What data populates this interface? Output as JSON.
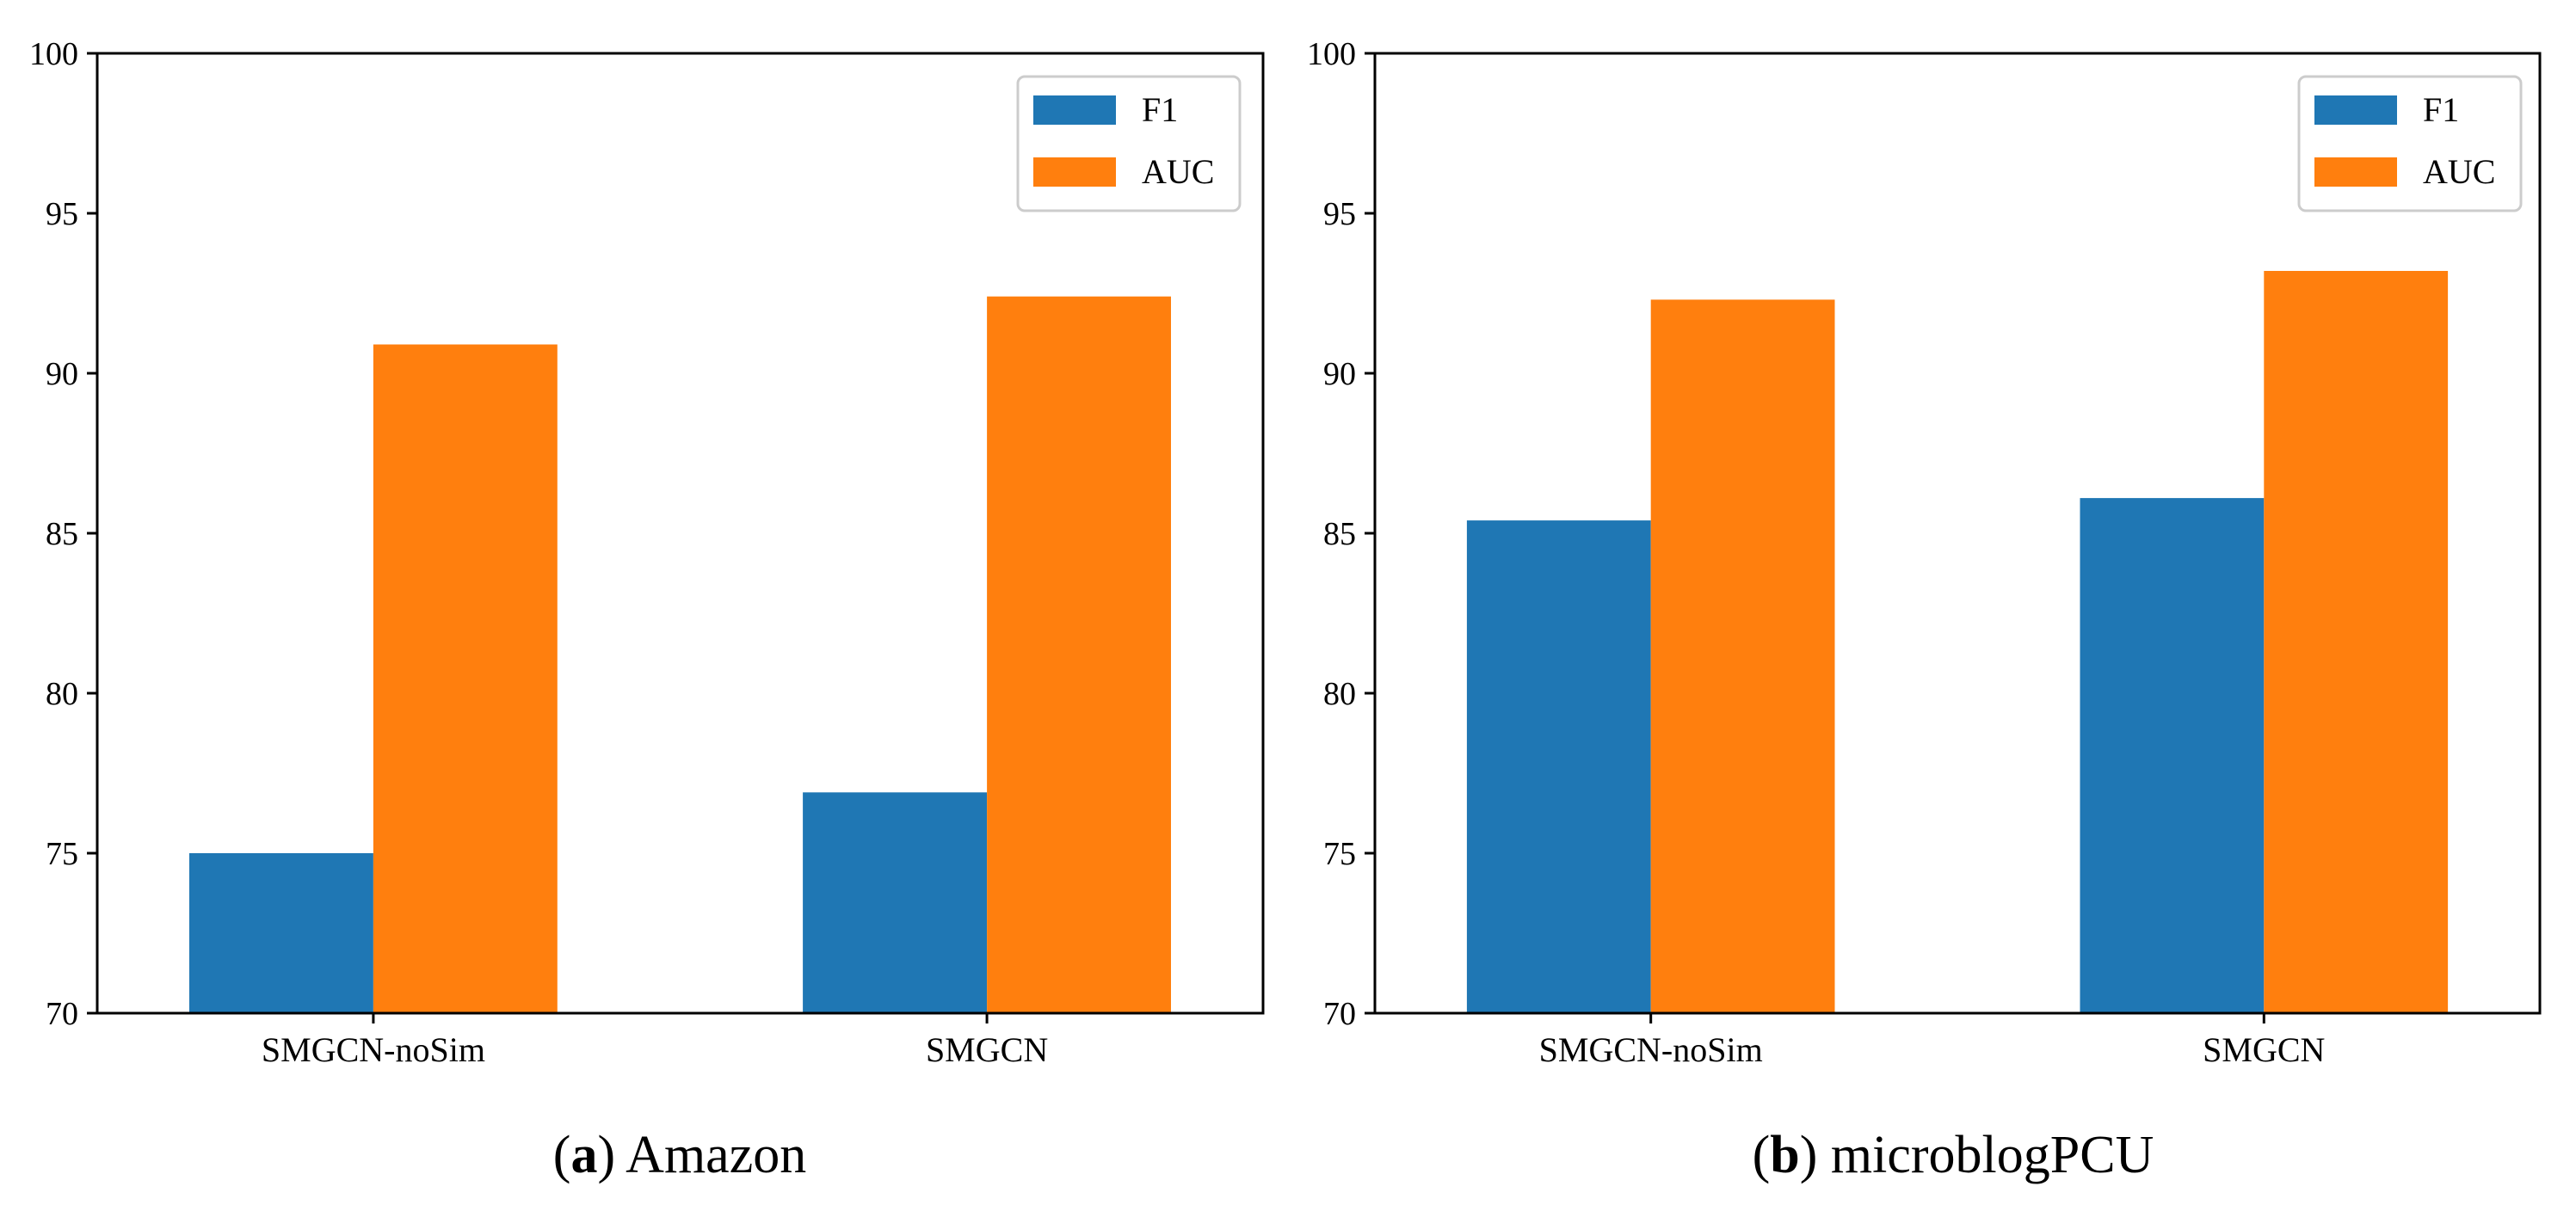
{
  "colors": {
    "F1": "#1f77b4",
    "AUC": "#ff7f0e",
    "axis": "#000000",
    "legend_border": "#cccccc"
  },
  "chart_data": [
    {
      "type": "bar",
      "caption_letter": "a",
      "caption_text": "Amazon",
      "categories": [
        "SMGCN-noSim",
        "SMGCN"
      ],
      "series": [
        {
          "name": "F1",
          "values": [
            75.0,
            76.9
          ]
        },
        {
          "name": "AUC",
          "values": [
            90.9,
            92.4
          ]
        }
      ],
      "ylim": [
        70,
        100
      ],
      "yticks": [
        70,
        75,
        80,
        85,
        90,
        95,
        100
      ],
      "ytick_labels": [
        "70",
        "75",
        "80",
        "85",
        "90",
        "95",
        "100"
      ],
      "legend": {
        "location": "top-right",
        "labels": [
          "F1",
          "AUC"
        ]
      },
      "grid": false
    },
    {
      "type": "bar",
      "caption_letter": "b",
      "caption_text": "microblogPCU",
      "categories": [
        "SMGCN-noSim",
        "SMGCN"
      ],
      "series": [
        {
          "name": "F1",
          "values": [
            85.4,
            86.1
          ]
        },
        {
          "name": "AUC",
          "values": [
            92.3,
            93.2
          ]
        }
      ],
      "ylim": [
        70,
        100
      ],
      "yticks": [
        70,
        75,
        80,
        85,
        90,
        95,
        100
      ],
      "ytick_labels": [
        "70",
        "75",
        "80",
        "85",
        "90",
        "95",
        "100"
      ],
      "legend": {
        "location": "top-right",
        "labels": [
          "F1",
          "AUC"
        ]
      },
      "grid": false
    }
  ]
}
